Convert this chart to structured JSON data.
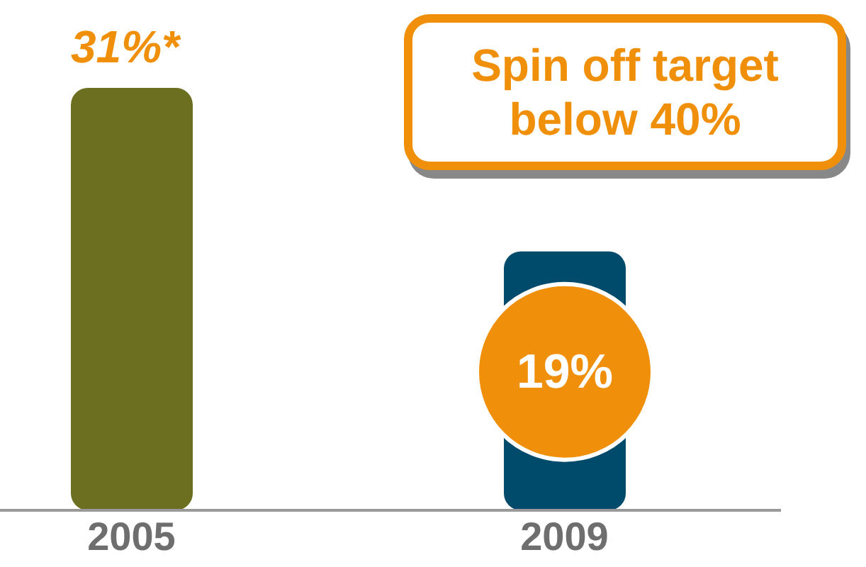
{
  "chart_data": {
    "type": "bar",
    "categories": [
      "2005",
      "2009"
    ],
    "values": [
      31,
      19
    ],
    "colors": [
      "#6b6f1f",
      "#004a6b"
    ],
    "value_labels": [
      "31%*",
      "19%"
    ],
    "annotations": [
      "Spin off target below 40%"
    ],
    "relative": false,
    "grid": false,
    "legend": false
  }
}
